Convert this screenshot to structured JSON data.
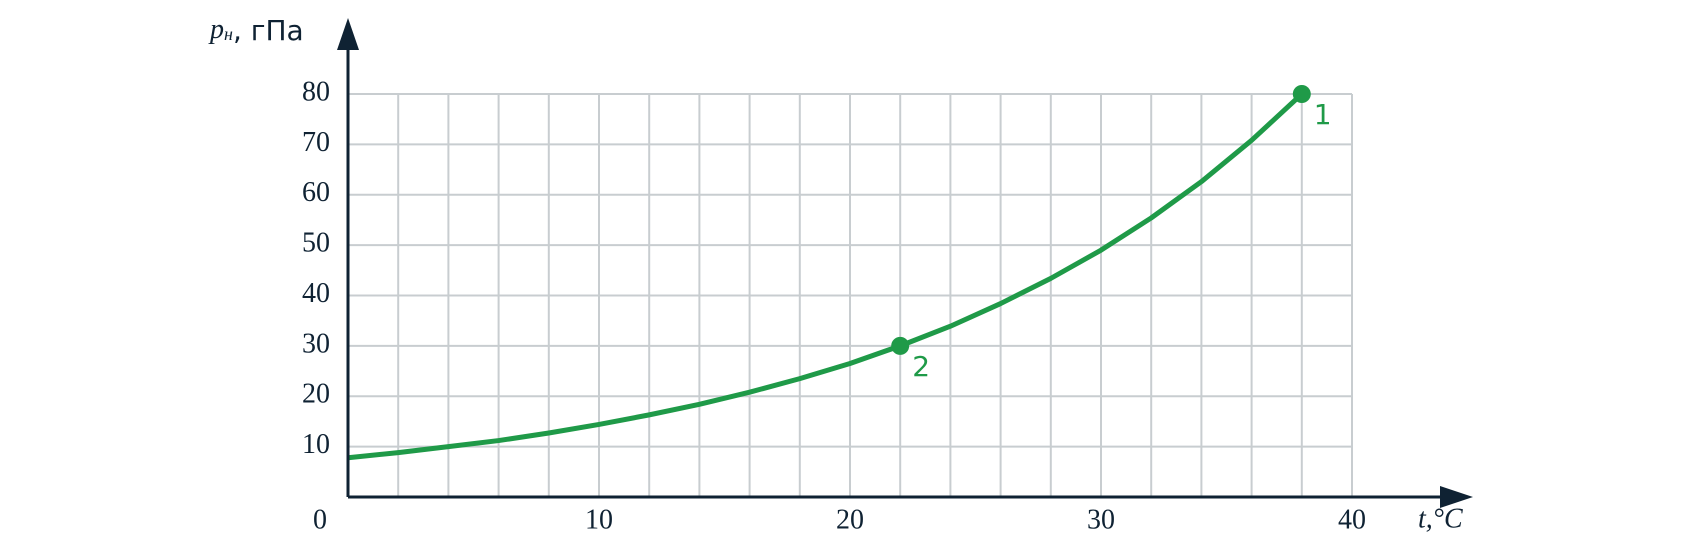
{
  "chart_data": {
    "type": "line",
    "x_label": "t,°C",
    "y_label_symbol": "p",
    "y_label_subscript": "н",
    "y_label_unit": ", гПа",
    "xlim": [
      0,
      40
    ],
    "ylim": [
      0,
      80
    ],
    "xticks": [
      0,
      10,
      20,
      30,
      40
    ],
    "yticks": [
      10,
      20,
      30,
      40,
      50,
      60,
      70,
      80
    ],
    "xgrid": [
      2,
      4,
      6,
      8,
      10,
      12,
      14,
      16,
      18,
      20,
      22,
      24,
      26,
      28,
      30,
      32,
      34,
      36,
      38,
      40
    ],
    "grid": true,
    "color": "#1f9a48",
    "series": [
      {
        "x": [
          0,
          2,
          4,
          6,
          8,
          10,
          12,
          14,
          16,
          18,
          20,
          22,
          24,
          26,
          28,
          30,
          32,
          34,
          36,
          38
        ],
        "values": [
          7.8,
          8.8,
          10.0,
          11.2,
          12.7,
          14.4,
          16.3,
          18.4,
          20.8,
          23.5,
          26.5,
          30,
          33.9,
          38.4,
          43.4,
          49,
          55.4,
          62.6,
          70.8,
          80
        ]
      },
      {
        "x": [
          38,
          22
        ],
        "values": [
          80,
          30
        ],
        "labels": [
          "1",
          "2"
        ]
      }
    ]
  }
}
